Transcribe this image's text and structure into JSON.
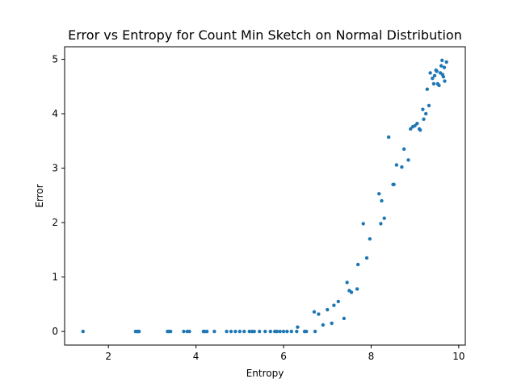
{
  "chart_data": {
    "type": "scatter",
    "title": "Error vs Entropy for Count Min Sketch on Normal Distribution",
    "xlabel": "Entropy",
    "ylabel": "Error",
    "xlim": [
      1.0,
      10.15
    ],
    "ylim": [
      -0.25,
      5.23
    ],
    "xticks": [
      2,
      4,
      6,
      8,
      10
    ],
    "yticks": [
      0,
      1,
      2,
      3,
      4,
      5
    ],
    "grid": false,
    "marker_color": "#1f77b4",
    "series": [
      {
        "x": [
          1.42,
          2.62,
          2.66,
          2.68,
          2.7,
          3.35,
          3.38,
          3.42,
          3.72,
          3.8,
          3.85,
          4.17,
          4.2,
          4.25,
          4.42,
          4.7,
          4.8,
          4.9,
          5.0,
          5.1,
          5.22,
          5.28,
          5.33,
          5.45,
          5.58,
          5.7,
          5.8,
          5.85,
          5.92,
          6.0,
          6.08,
          6.18,
          6.3,
          6.48,
          6.52,
          6.72,
          6.32,
          6.7,
          6.8,
          6.9,
          7.0,
          7.1,
          7.15,
          7.25,
          7.38,
          7.45,
          7.5,
          7.55,
          7.68,
          7.7,
          7.82,
          7.9,
          7.97,
          8.18,
          8.22,
          8.24,
          8.3,
          8.4,
          8.5,
          8.52,
          8.58,
          8.7,
          8.75,
          8.85,
          8.9,
          8.95,
          9.0,
          9.05,
          9.1,
          9.12,
          9.18,
          9.2,
          9.25,
          9.28,
          9.32,
          9.35,
          9.4,
          9.43,
          9.45,
          9.48,
          9.5,
          9.52,
          9.55,
          9.58,
          9.6,
          9.62,
          9.63,
          9.65,
          9.67,
          9.68,
          9.72
        ],
        "y": [
          0.0,
          0.0,
          0.0,
          0.0,
          0.0,
          0.0,
          0.0,
          0.0,
          0.0,
          0.0,
          0.0,
          0.0,
          0.0,
          0.0,
          0.0,
          0.0,
          0.0,
          0.0,
          0.0,
          0.0,
          0.0,
          0.0,
          0.0,
          0.0,
          0.0,
          0.0,
          0.0,
          0.0,
          0.0,
          0.0,
          0.0,
          0.0,
          0.0,
          0.0,
          0.0,
          0.0,
          0.08,
          0.36,
          0.32,
          0.12,
          0.4,
          0.15,
          0.48,
          0.55,
          0.24,
          0.9,
          0.75,
          0.72,
          0.78,
          1.23,
          1.98,
          1.35,
          1.7,
          2.53,
          1.98,
          2.4,
          2.08,
          3.57,
          2.7,
          2.7,
          3.06,
          3.02,
          3.35,
          3.15,
          3.72,
          3.76,
          3.78,
          3.82,
          3.72,
          3.7,
          4.08,
          3.9,
          4.0,
          4.45,
          4.15,
          4.75,
          4.65,
          4.55,
          4.7,
          4.8,
          4.78,
          4.55,
          4.52,
          4.75,
          4.88,
          4.98,
          4.72,
          4.68,
          4.85,
          4.6,
          4.95
        ]
      }
    ]
  }
}
